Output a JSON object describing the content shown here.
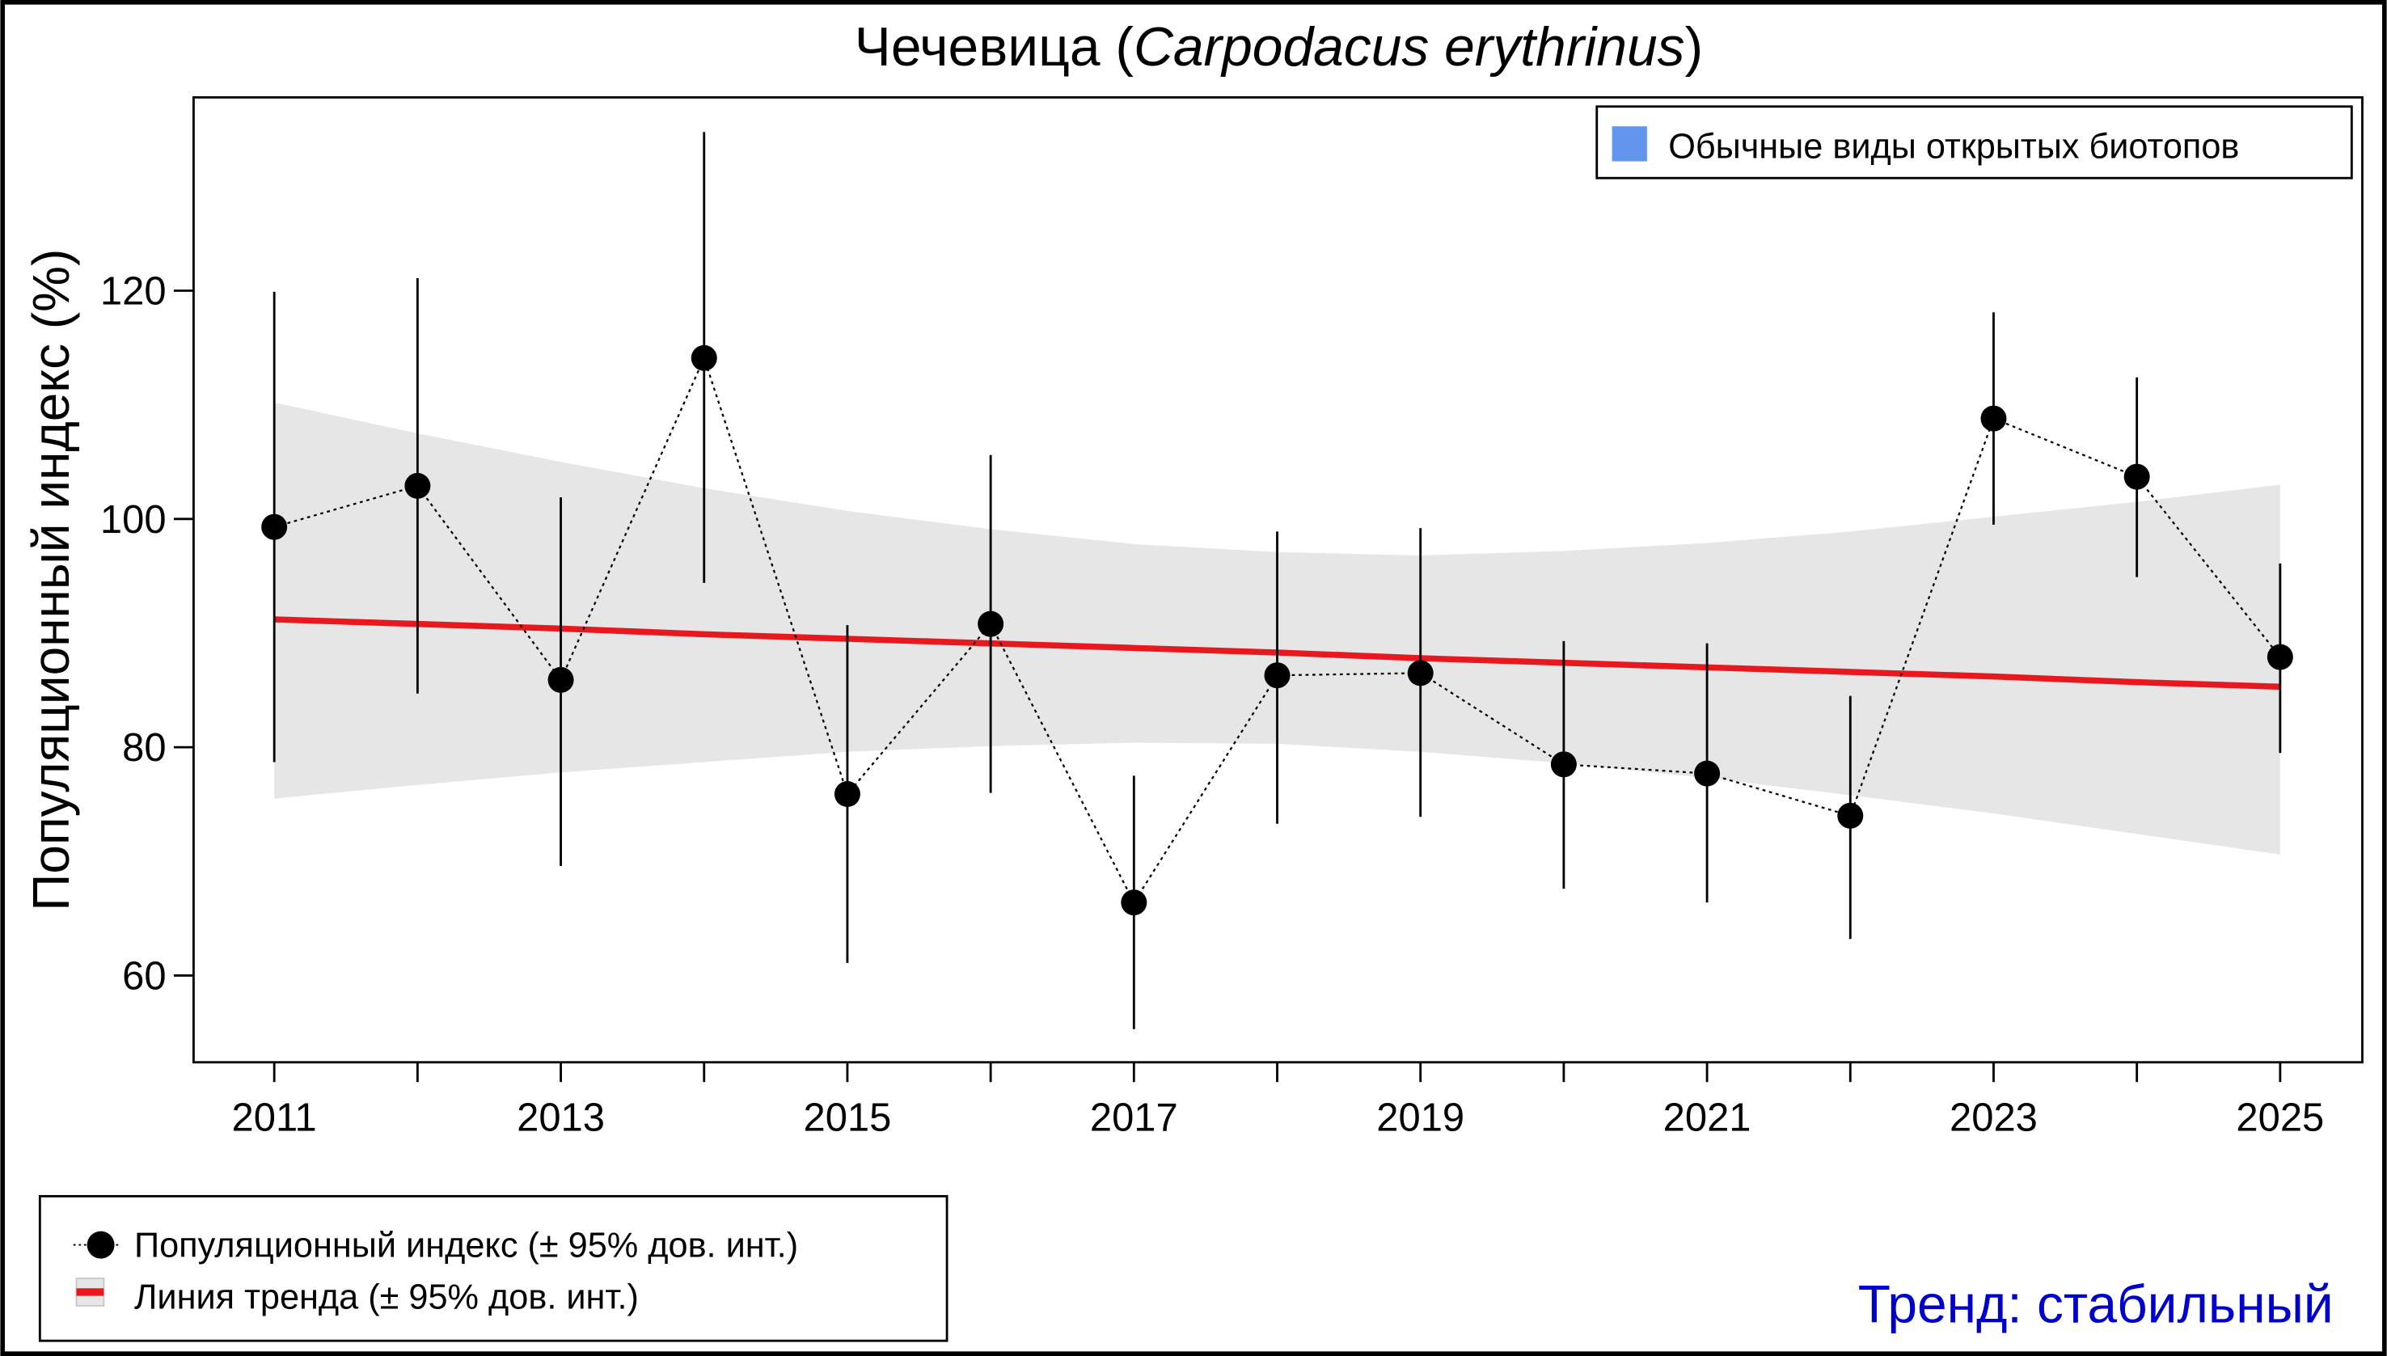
{
  "chart_data": {
    "type": "line",
    "title": {
      "common": "Чечевица",
      "latin": "Carpodacus erythrinus"
    },
    "ylabel": "Популяционный индекс (%)",
    "xlabel": "",
    "xlim": [
      2010.45,
      2025.6
    ],
    "ylim": [
      52.5,
      137
    ],
    "x_ticks": [
      2011,
      2012,
      2013,
      2014,
      2015,
      2016,
      2017,
      2018,
      2019,
      2020,
      2021,
      2022,
      2023,
      2024,
      2025
    ],
    "x_tick_labels": [
      "2011",
      "2013",
      "2015",
      "2017",
      "2019",
      "2021",
      "2023",
      "2025"
    ],
    "y_ticks": [
      60,
      80,
      100,
      120
    ],
    "grid": false,
    "x": [
      2011,
      2012,
      2013,
      2014,
      2015,
      2016,
      2017,
      2018,
      2019,
      2020,
      2021,
      2022,
      2023,
      2024,
      2025
    ],
    "series": [
      {
        "name": "Популяционный индекс (± 95% дов. инт.)",
        "kind": "points-dotted",
        "values": [
          99.3,
          102.9,
          85.9,
          114.1,
          75.9,
          90.8,
          66.4,
          86.3,
          86.5,
          78.5,
          77.7,
          74.0,
          108.8,
          103.7,
          87.9
        ],
        "ci_lower": [
          78.7,
          84.7,
          69.6,
          94.4,
          61.1,
          76.0,
          55.3,
          73.3,
          73.9,
          67.6,
          66.4,
          63.2,
          99.5,
          94.9,
          79.5
        ],
        "ci_upper": [
          119.9,
          121.1,
          101.9,
          133.9,
          90.7,
          105.6,
          77.5,
          98.9,
          99.2,
          89.3,
          89.1,
          84.5,
          118.1,
          112.4,
          96.1
        ],
        "color": "#000000"
      },
      {
        "name": "Линия тренда (± 95% дов. инт.)",
        "kind": "trend",
        "values": [
          91.2,
          90.8,
          90.4,
          89.9,
          89.5,
          89.1,
          88.7,
          88.3,
          87.8,
          87.4,
          87.0,
          86.6,
          86.2,
          85.7,
          85.3
        ],
        "band_lower": [
          75.5,
          76.7,
          77.8,
          78.7,
          79.6,
          80.1,
          80.4,
          80.3,
          79.6,
          78.6,
          77.3,
          75.8,
          74.2,
          72.4,
          70.6
        ],
        "band_upper": [
          110.2,
          107.5,
          105.0,
          102.7,
          100.7,
          99.1,
          97.8,
          97.1,
          96.8,
          97.2,
          97.9,
          98.9,
          100.2,
          101.5,
          103.0
        ],
        "color": "#e8191e",
        "band_color": "#e6e6e6"
      }
    ],
    "group_legend": {
      "label": "Обычные виды открытых биотопов",
      "color": "#6495ed",
      "placement": "top-right"
    },
    "legend_placement": "bottom-left",
    "trend_text": {
      "label": "Тренд: стабильный",
      "color": "#0000cc"
    }
  }
}
